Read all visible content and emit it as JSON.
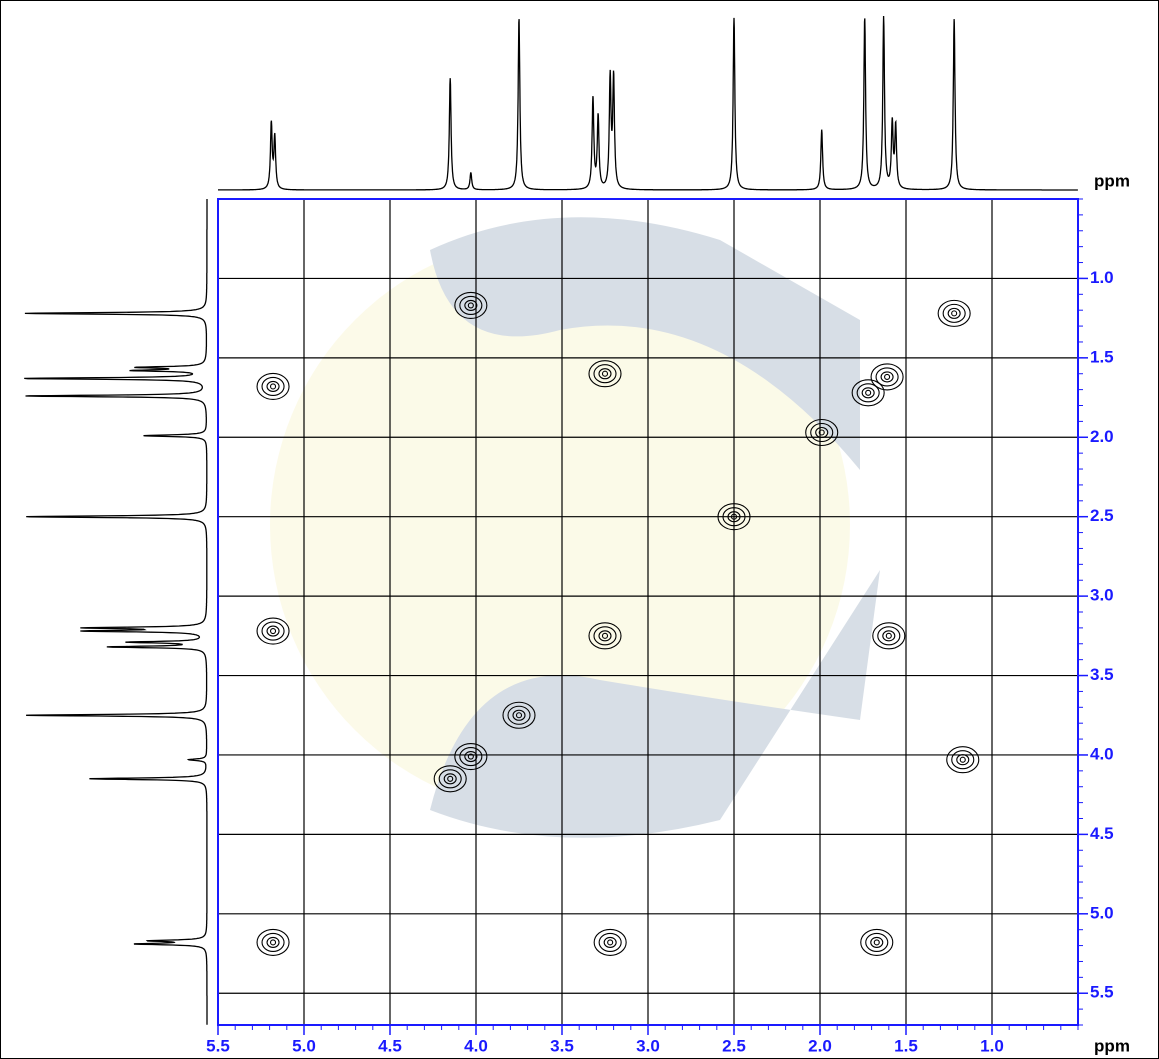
{
  "chart_data": {
    "type": "cosy",
    "x_label": "ppm",
    "y_label": "ppm",
    "xlim": [
      5.5,
      0.5
    ],
    "ylim": [
      0.5,
      5.7
    ],
    "xticks": [
      5.5,
      {
        "value": 5,
        "label": "5.0"
      },
      4.5,
      {
        "value": 4,
        "label": "4.0"
      },
      3.5,
      {
        "value": 3,
        "label": "3.0"
      },
      2.5,
      {
        "value": 2,
        "label": "2.0"
      },
      1.5,
      {
        "value": 1,
        "label": "1.0"
      }
    ],
    "yticks": [
      {
        "value": 1,
        "label": "1.0"
      },
      1.5,
      {
        "value": 2,
        "label": "2.0"
      },
      2.5,
      {
        "value": 3,
        "label": "3.0"
      },
      3.5,
      {
        "value": 4,
        "label": "4.0"
      },
      4.5,
      {
        "value": 5,
        "label": "5.0"
      },
      5.5
    ],
    "grid": true,
    "axis_color": "#1a1aff",
    "peaks": {
      "x": [
        5.19,
        5.17,
        4.15,
        4.03,
        3.75,
        3.32,
        3.29,
        3.22,
        3.2,
        2.5,
        1.99,
        1.74,
        1.63,
        1.58,
        1.56,
        1.22
      ],
      "height": [
        38,
        30,
        65,
        10,
        100,
        53,
        42,
        64,
        64,
        100,
        35,
        100,
        100,
        38,
        36,
        100
      ]
    },
    "cross_peaks": {
      "x": [
        5.18,
        4.15,
        3.75,
        3.25,
        2.5,
        1.72,
        1.61,
        1.22,
        1.99,
        4.03,
        5.18,
        5.18,
        3.25,
        1.6,
        3.22,
        1.67,
        4.03,
        1.17
      ],
      "y": [
        5.18,
        4.15,
        3.75,
        3.25,
        2.5,
        1.72,
        1.62,
        1.22,
        1.97,
        4.01,
        1.68,
        3.22,
        1.6,
        3.25,
        5.18,
        5.18,
        1.17,
        4.03
      ]
    }
  }
}
